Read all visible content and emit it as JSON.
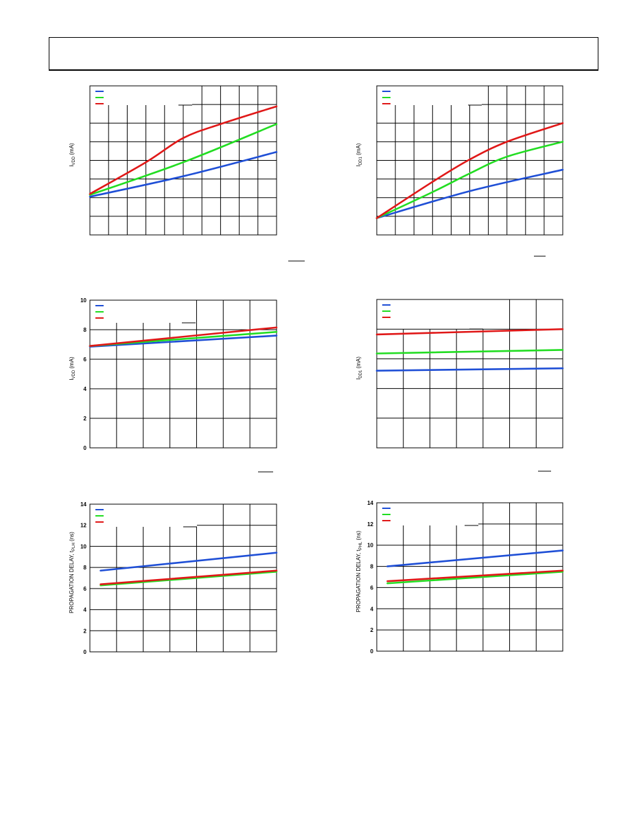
{
  "page": {
    "header_text": ""
  },
  "colors": {
    "series": [
      "#1f4fd6",
      "#22dd22",
      "#e01818"
    ],
    "grid": "#000000"
  },
  "chart_data": [
    {
      "id": "c1",
      "type": "line",
      "ylabel": "I_VDD (mA)",
      "xlim": [
        0,
        10
      ],
      "ylim": [
        0,
        8
      ],
      "xgrid": 10,
      "ygrid": 8,
      "yticks": [],
      "fig_id": "",
      "series": [
        {
          "x": [
            0,
            5,
            10
          ],
          "y": [
            2.05,
            3.15,
            4.45
          ]
        },
        {
          "x": [
            0,
            5,
            10
          ],
          "y": [
            2.15,
            3.9,
            5.95
          ]
        },
        {
          "x": [
            0,
            3,
            5,
            7,
            10
          ],
          "y": [
            2.2,
            3.9,
            5.2,
            5.95,
            6.9
          ]
        }
      ]
    },
    {
      "id": "c2",
      "type": "line",
      "ylabel": "I_DD1 (mA)",
      "xlim": [
        0,
        10
      ],
      "ylim": [
        0,
        8
      ],
      "xgrid": 10,
      "ygrid": 8,
      "yticks": [],
      "fig_id": "",
      "series": [
        {
          "x": [
            0,
            5,
            10
          ],
          "y": [
            0.9,
            2.35,
            3.5
          ]
        },
        {
          "x": [
            0,
            3,
            5,
            7,
            10
          ],
          "y": [
            0.9,
            2.3,
            3.3,
            4.2,
            5.0
          ]
        },
        {
          "x": [
            0,
            3,
            5,
            7,
            10
          ],
          "y": [
            0.9,
            2.85,
            4.05,
            5.0,
            6.0
          ]
        }
      ]
    },
    {
      "id": "c3",
      "type": "line",
      "ylabel": "I_VDD (mA)",
      "xlim": [
        0,
        7
      ],
      "ylim": [
        0,
        10
      ],
      "xgrid": 7,
      "ygrid": 5,
      "yticks": [
        "0",
        "2",
        "4",
        "6",
        "8",
        "10"
      ],
      "fig_id": "",
      "series": [
        {
          "x": [
            0,
            7
          ],
          "y": [
            6.85,
            7.6
          ]
        },
        {
          "x": [
            0,
            7
          ],
          "y": [
            6.9,
            7.85
          ]
        },
        {
          "x": [
            0,
            7
          ],
          "y": [
            6.9,
            8.15
          ]
        }
      ]
    },
    {
      "id": "c4",
      "type": "line",
      "ylabel": "I_DD1 (mA)",
      "xlim": [
        0,
        7
      ],
      "ylim": [
        0,
        5
      ],
      "xgrid": 7,
      "ygrid": 5,
      "yticks": [],
      "fig_id": "",
      "series": [
        {
          "x": [
            0,
            7
          ],
          "y": [
            2.6,
            2.68
          ]
        },
        {
          "x": [
            0,
            7
          ],
          "y": [
            3.18,
            3.3
          ]
        },
        {
          "x": [
            0,
            7
          ],
          "y": [
            3.82,
            4.0
          ]
        }
      ]
    },
    {
      "id": "c5",
      "type": "line",
      "ylabel": "PROPAGATION DELAY, t_PLH (ns)",
      "xlim": [
        0,
        7
      ],
      "ylim": [
        0,
        14
      ],
      "xgrid": 7,
      "ygrid": 7,
      "yticks": [
        "0",
        "2",
        "4",
        "6",
        "8",
        "10",
        "12",
        "14"
      ],
      "fig_id": "",
      "series": [
        {
          "x": [
            0.4,
            7
          ],
          "y": [
            7.7,
            9.4
          ]
        },
        {
          "x": [
            0.4,
            7
          ],
          "y": [
            6.3,
            7.6
          ]
        },
        {
          "x": [
            0.4,
            7
          ],
          "y": [
            6.4,
            7.7
          ]
        }
      ]
    },
    {
      "id": "c6",
      "type": "line",
      "ylabel": "PROPAGATION DELAY, t_PHL (ns)",
      "xlim": [
        0,
        7
      ],
      "ylim": [
        0,
        14
      ],
      "xgrid": 7,
      "ygrid": 7,
      "yticks": [
        "0",
        "2",
        "4",
        "6",
        "8",
        "10",
        "12",
        "14"
      ],
      "fig_id": "",
      "series": [
        {
          "x": [
            0.4,
            7
          ],
          "y": [
            8.0,
            9.5
          ]
        },
        {
          "x": [
            0.4,
            7
          ],
          "y": [
            6.4,
            7.5
          ]
        },
        {
          "x": [
            0.4,
            7
          ],
          "y": [
            6.6,
            7.6
          ]
        }
      ]
    }
  ]
}
